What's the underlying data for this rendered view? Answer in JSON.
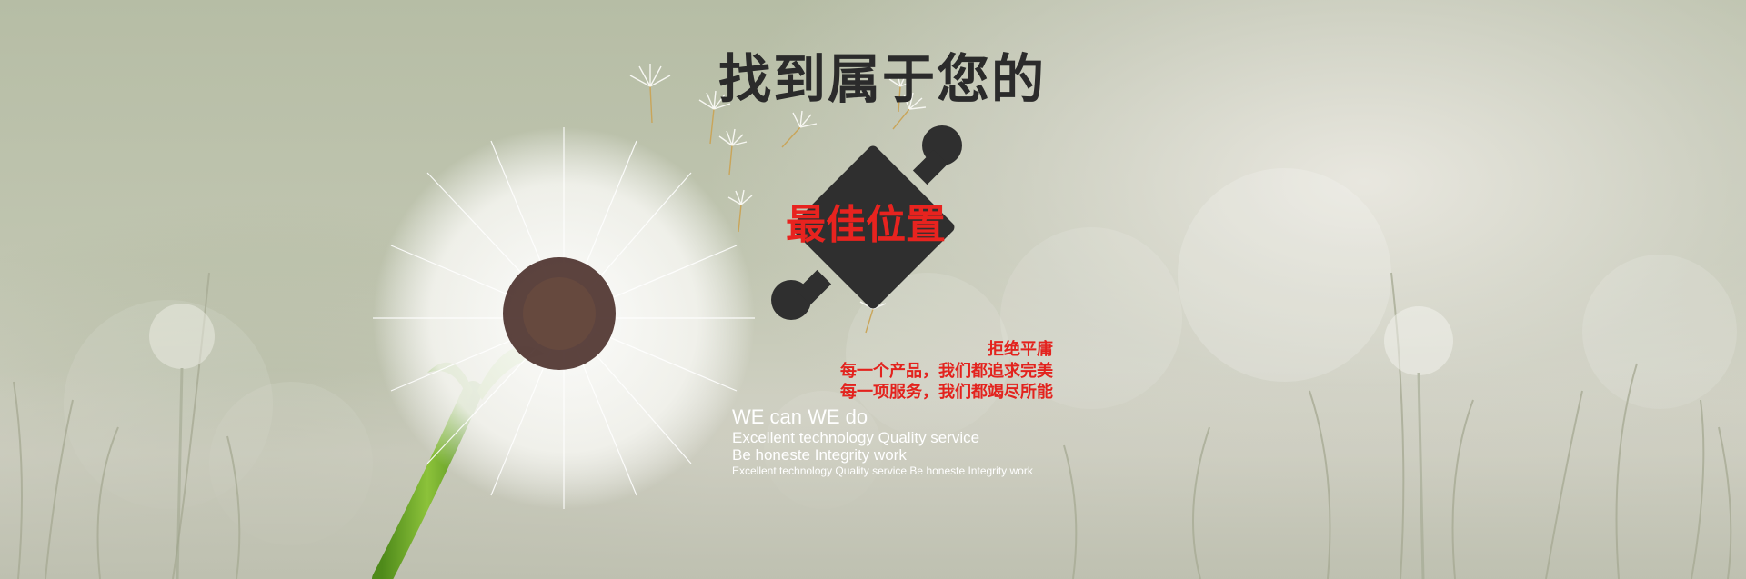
{
  "banner": {
    "headline": "找到属于您的",
    "puzzle_label": "最佳位置",
    "slogan": {
      "line1": "拒绝平庸",
      "line2": "每一个产品，我们都追求完美",
      "line3": "每一项服务，我们都竭尽所能"
    },
    "english": {
      "line1": "WE can WE do",
      "line2": "Excellent technology Quality service",
      "line3": "Be honeste Integrity work",
      "line4": "Excellent technology Quality service  Be honeste Integrity work"
    }
  },
  "colors": {
    "headline": "#2b2b2b",
    "accent_red": "#e3221d",
    "puzzle": "#2f2f2f",
    "english_text": "#ffffff"
  },
  "icons": [
    "dandelion-illustration",
    "puzzle-piece-icon"
  ]
}
